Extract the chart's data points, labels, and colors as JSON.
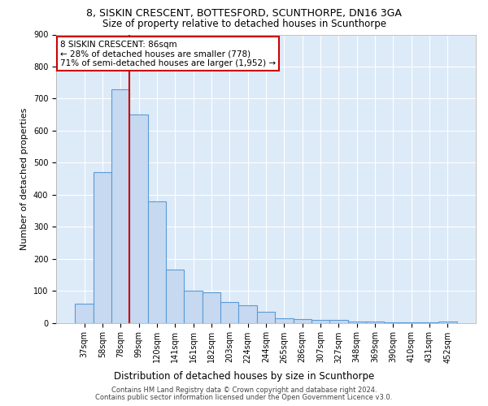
{
  "title": "8, SISKIN CRESCENT, BOTTESFORD, SCUNTHORPE, DN16 3GA",
  "subtitle": "Size of property relative to detached houses in Scunthorpe",
  "xlabel_bottom": "Distribution of detached houses by size in Scunthorpe",
  "ylabel": "Number of detached properties",
  "footer_line1": "Contains HM Land Registry data © Crown copyright and database right 2024.",
  "footer_line2": "Contains public sector information licensed under the Open Government Licence v3.0.",
  "categories": [
    "37sqm",
    "58sqm",
    "78sqm",
    "99sqm",
    "120sqm",
    "141sqm",
    "161sqm",
    "182sqm",
    "203sqm",
    "224sqm",
    "244sqm",
    "265sqm",
    "286sqm",
    "307sqm",
    "327sqm",
    "348sqm",
    "369sqm",
    "390sqm",
    "410sqm",
    "431sqm",
    "452sqm"
  ],
  "values": [
    60,
    470,
    730,
    650,
    380,
    165,
    100,
    95,
    65,
    55,
    35,
    15,
    12,
    10,
    10,
    5,
    4,
    2,
    2,
    2,
    5
  ],
  "bar_color": "#c7d9f0",
  "bar_edge_color": "#5b9bd5",
  "red_line_color": "#cc0000",
  "annotation_line1": "8 SISKIN CRESCENT: 86sqm",
  "annotation_line2": "← 28% of detached houses are smaller (778)",
  "annotation_line3": "71% of semi-detached houses are larger (1,952) →",
  "annotation_box_color": "#ffffff",
  "annotation_box_edge": "#cc0000",
  "ylim": [
    0,
    900
  ],
  "yticks": [
    0,
    100,
    200,
    300,
    400,
    500,
    600,
    700,
    800,
    900
  ],
  "background_color": "#ddeaf8",
  "grid_color": "#ffffff",
  "title_fontsize": 9,
  "subtitle_fontsize": 8.5,
  "tick_fontsize": 7,
  "ylabel_fontsize": 8,
  "footer_fontsize": 6,
  "xlabel_bottom_fontsize": 8.5
}
